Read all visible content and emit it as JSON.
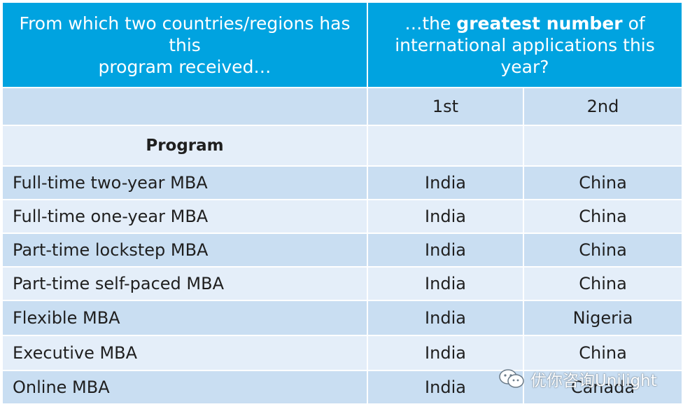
{
  "header": {
    "left_line1": "From which two countries/regions has this",
    "left_line2": "program received…",
    "right_pre": "…the ",
    "right_bold": "greatest number",
    "right_post": " of",
    "right_line2": "international applications this year?"
  },
  "subheader": {
    "col1": "",
    "col2": "1st",
    "col3": "2nd"
  },
  "program_label": "Program",
  "rows": [
    {
      "program": "Full-time two-year MBA",
      "first": "India",
      "second": "China"
    },
    {
      "program": "Full-time one-year MBA",
      "first": "India",
      "second": "China"
    },
    {
      "program": "Part-time lockstep MBA",
      "first": "India",
      "second": "China"
    },
    {
      "program": "Part-time self-paced MBA",
      "first": "India",
      "second": "China"
    },
    {
      "program": "Flexible MBA",
      "first": "India",
      "second": "Nigeria"
    },
    {
      "program": "Executive MBA",
      "first": "India",
      "second": "China"
    },
    {
      "program": "Online MBA",
      "first": "India",
      "second": "Canada"
    }
  ],
  "watermark": {
    "text": "优你咨询Unilight",
    "icon": "wechat-icon"
  },
  "colors": {
    "header": "#00a3e0",
    "band_dark": "#c9def2",
    "band_light": "#e4eef9"
  }
}
